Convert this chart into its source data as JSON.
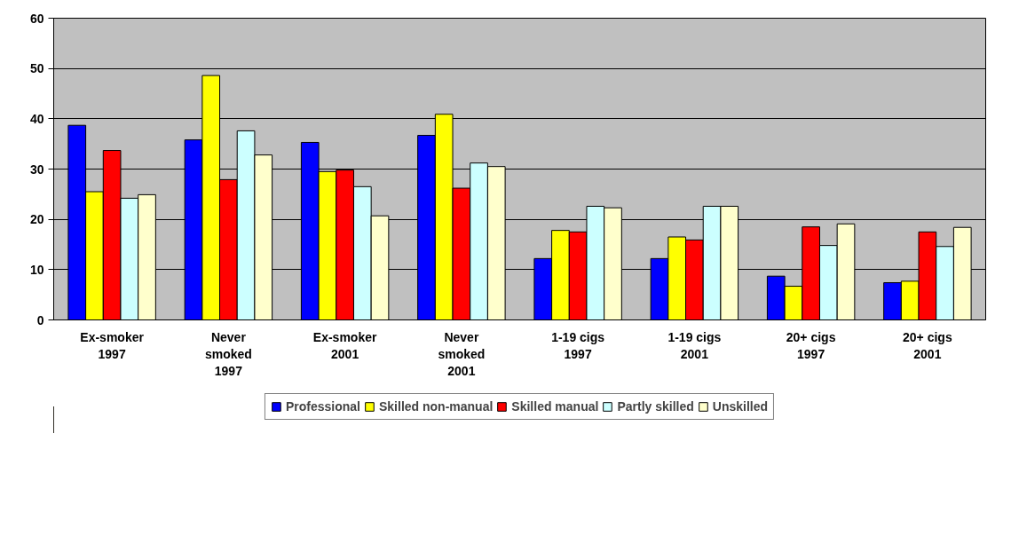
{
  "chart_data": {
    "type": "bar",
    "categories": [
      "Ex-smoker\n1997",
      "Never\nsmoked\n1997",
      "Ex-smoker\n2001",
      "Never\nsmoked\n2001",
      "1-19 cigs\n1997",
      "1-19 cigs\n2001",
      "20+ cigs\n1997",
      "20+ cigs\n2001"
    ],
    "series": [
      {
        "name": "Professional",
        "color": "#0000ff",
        "values": [
          38.7,
          35.8,
          35.3,
          36.7,
          12.2,
          12.2,
          8.7,
          7.4
        ]
      },
      {
        "name": "Skilled non-manual",
        "color": "#ffff00",
        "values": [
          25.5,
          48.6,
          29.5,
          40.9,
          17.8,
          16.5,
          6.7,
          7.7
        ]
      },
      {
        "name": "Skilled manual",
        "color": "#ff0000",
        "values": [
          33.7,
          27.9,
          29.8,
          26.2,
          17.5,
          15.9,
          18.5,
          17.5
        ]
      },
      {
        "name": "Partly skilled",
        "color": "#ccffff",
        "values": [
          24.2,
          37.6,
          26.5,
          31.2,
          22.6,
          22.6,
          14.8,
          14.6
        ]
      },
      {
        "name": "Unskilled",
        "color": "#ffffcc",
        "values": [
          24.9,
          32.8,
          20.7,
          30.5,
          22.3,
          22.6,
          19.1,
          18.4
        ]
      }
    ],
    "ylim": [
      0,
      60
    ],
    "yticks": [
      0,
      10,
      20,
      30,
      40,
      50,
      60
    ],
    "grid": "y",
    "legend": "bottom"
  }
}
